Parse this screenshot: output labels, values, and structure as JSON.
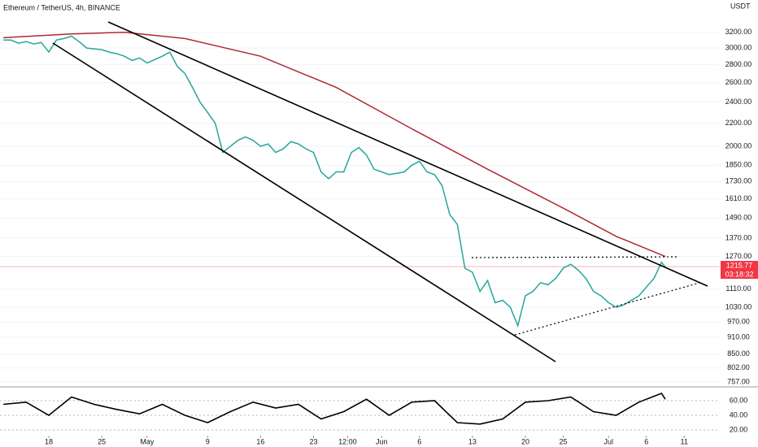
{
  "title": "Ethereum / TetherUS, 4h, BINANCE",
  "axis_unit": "USDT",
  "countdown": "03:18:32",
  "chart_data": [
    {
      "type": "line",
      "log_scale": true,
      "xlim": [
        10.55,
        105.7
      ],
      "ylim": [
        757,
        3560
      ],
      "xticks": [
        {
          "value": 17,
          "label": "18"
        },
        {
          "value": 24,
          "label": "25"
        },
        {
          "value": 30,
          "label": "May"
        },
        {
          "value": 38,
          "label": "9"
        },
        {
          "value": 45,
          "label": "16"
        },
        {
          "value": 52,
          "label": "23"
        },
        {
          "value": 56.5,
          "label": "12:00"
        },
        {
          "value": 61,
          "label": "Jun"
        },
        {
          "value": 66,
          "label": "6"
        },
        {
          "value": 73,
          "label": "13"
        },
        {
          "value": 80,
          "label": "20"
        },
        {
          "value": 85,
          "label": "25"
        },
        {
          "value": 91,
          "label": "Jul"
        },
        {
          "value": 96,
          "label": "6"
        },
        {
          "value": 101,
          "label": "11"
        }
      ],
      "yticks": [
        {
          "value": 757,
          "label": "757.00"
        },
        {
          "value": 802,
          "label": "802.00"
        },
        {
          "value": 850,
          "label": "850.00"
        },
        {
          "value": 910,
          "label": "910.00"
        },
        {
          "value": 970,
          "label": "970.00"
        },
        {
          "value": 1030,
          "label": "1030.00"
        },
        {
          "value": 1110,
          "label": "1110.00"
        },
        {
          "value": 1270,
          "label": "1270.00"
        },
        {
          "value": 1370,
          "label": "1370.00"
        },
        {
          "value": 1490,
          "label": "1490.00"
        },
        {
          "value": 1610,
          "label": "1610.00"
        },
        {
          "value": 1730,
          "label": "1730.00"
        },
        {
          "value": 1850,
          "label": "1850.00"
        },
        {
          "value": 2000,
          "label": "2000.00"
        },
        {
          "value": 2200,
          "label": "2200.00"
        },
        {
          "value": 2400,
          "label": "2400.00"
        },
        {
          "value": 2600,
          "label": "2600.00"
        },
        {
          "value": 2800,
          "label": "2800.00"
        },
        {
          "value": 3000,
          "label": "3000.00"
        },
        {
          "value": 3200,
          "label": "3200.00"
        }
      ],
      "series": [
        {
          "color": "#26a69a",
          "x": [
            11,
            12,
            13,
            14,
            15,
            16,
            17,
            18,
            19,
            20,
            21,
            22,
            23,
            24,
            25,
            26,
            27,
            28,
            29,
            30,
            31,
            32,
            33,
            34,
            35,
            36,
            37,
            38,
            39,
            40,
            41,
            42,
            43,
            44,
            45,
            46,
            47,
            48,
            49,
            50,
            51,
            52,
            53,
            54,
            55,
            56,
            57,
            58,
            59,
            60,
            61,
            62,
            63,
            64,
            65,
            66,
            67,
            68,
            69,
            70,
            71,
            72,
            73,
            74,
            75,
            76,
            77,
            78,
            79,
            80,
            81,
            82,
            83,
            84,
            85,
            86,
            87,
            88,
            89,
            90,
            91,
            92,
            93,
            94,
            95,
            96,
            97,
            98,
            98.5
          ],
          "values": [
            3100,
            3100,
            3060,
            3080,
            3050,
            3070,
            2950,
            3100,
            3120,
            3150,
            3080,
            3000,
            2990,
            2980,
            2950,
            2930,
            2900,
            2850,
            2880,
            2820,
            2860,
            2900,
            2950,
            2780,
            2700,
            2550,
            2400,
            2300,
            2200,
            1950,
            2000,
            2050,
            2080,
            2050,
            2000,
            2020,
            1950,
            1980,
            2040,
            2020,
            1980,
            1950,
            1800,
            1750,
            1800,
            1800,
            1950,
            1990,
            1930,
            1820,
            1800,
            1780,
            1790,
            1800,
            1850,
            1880,
            1800,
            1780,
            1700,
            1510,
            1450,
            1210,
            1190,
            1100,
            1150,
            1050,
            1060,
            1030,
            955,
            1080,
            1100,
            1140,
            1130,
            1160,
            1210,
            1230,
            1200,
            1160,
            1100,
            1080,
            1050,
            1030,
            1040,
            1060,
            1080,
            1120,
            1160,
            1240,
            1215.77
          ]
        },
        {
          "color": "#b22833",
          "x": [
            11,
            20,
            27,
            35,
            45,
            55,
            65,
            75,
            85,
            92,
            98.5
          ],
          "values": [
            3130,
            3180,
            3200,
            3120,
            2900,
            2550,
            2150,
            1820,
            1550,
            1380,
            1270
          ]
        }
      ]
    },
    {
      "type": "line",
      "xlim": [
        10.55,
        105.7
      ],
      "ylim": [
        13.3,
        76.7
      ],
      "yticks": [
        {
          "value": 20,
          "label": "20.00"
        },
        {
          "value": 40,
          "label": "40.00"
        },
        {
          "value": 60,
          "label": "60.00"
        }
      ],
      "series": [
        {
          "color": "#000000",
          "x": [
            11,
            14,
            17,
            20,
            23,
            26,
            29,
            32,
            35,
            38,
            41,
            44,
            47,
            50,
            53,
            56,
            59,
            62,
            65,
            68,
            71,
            74,
            77,
            80,
            83,
            86,
            89,
            92,
            95,
            98,
            98.5
          ],
          "values": [
            55,
            58,
            40,
            65,
            55,
            48,
            42,
            55,
            40,
            30,
            45,
            58,
            50,
            55,
            35,
            45,
            62,
            40,
            58,
            60,
            30,
            28,
            35,
            58,
            60,
            65,
            45,
            40,
            58,
            70,
            62
          ]
        }
      ]
    }
  ]
}
